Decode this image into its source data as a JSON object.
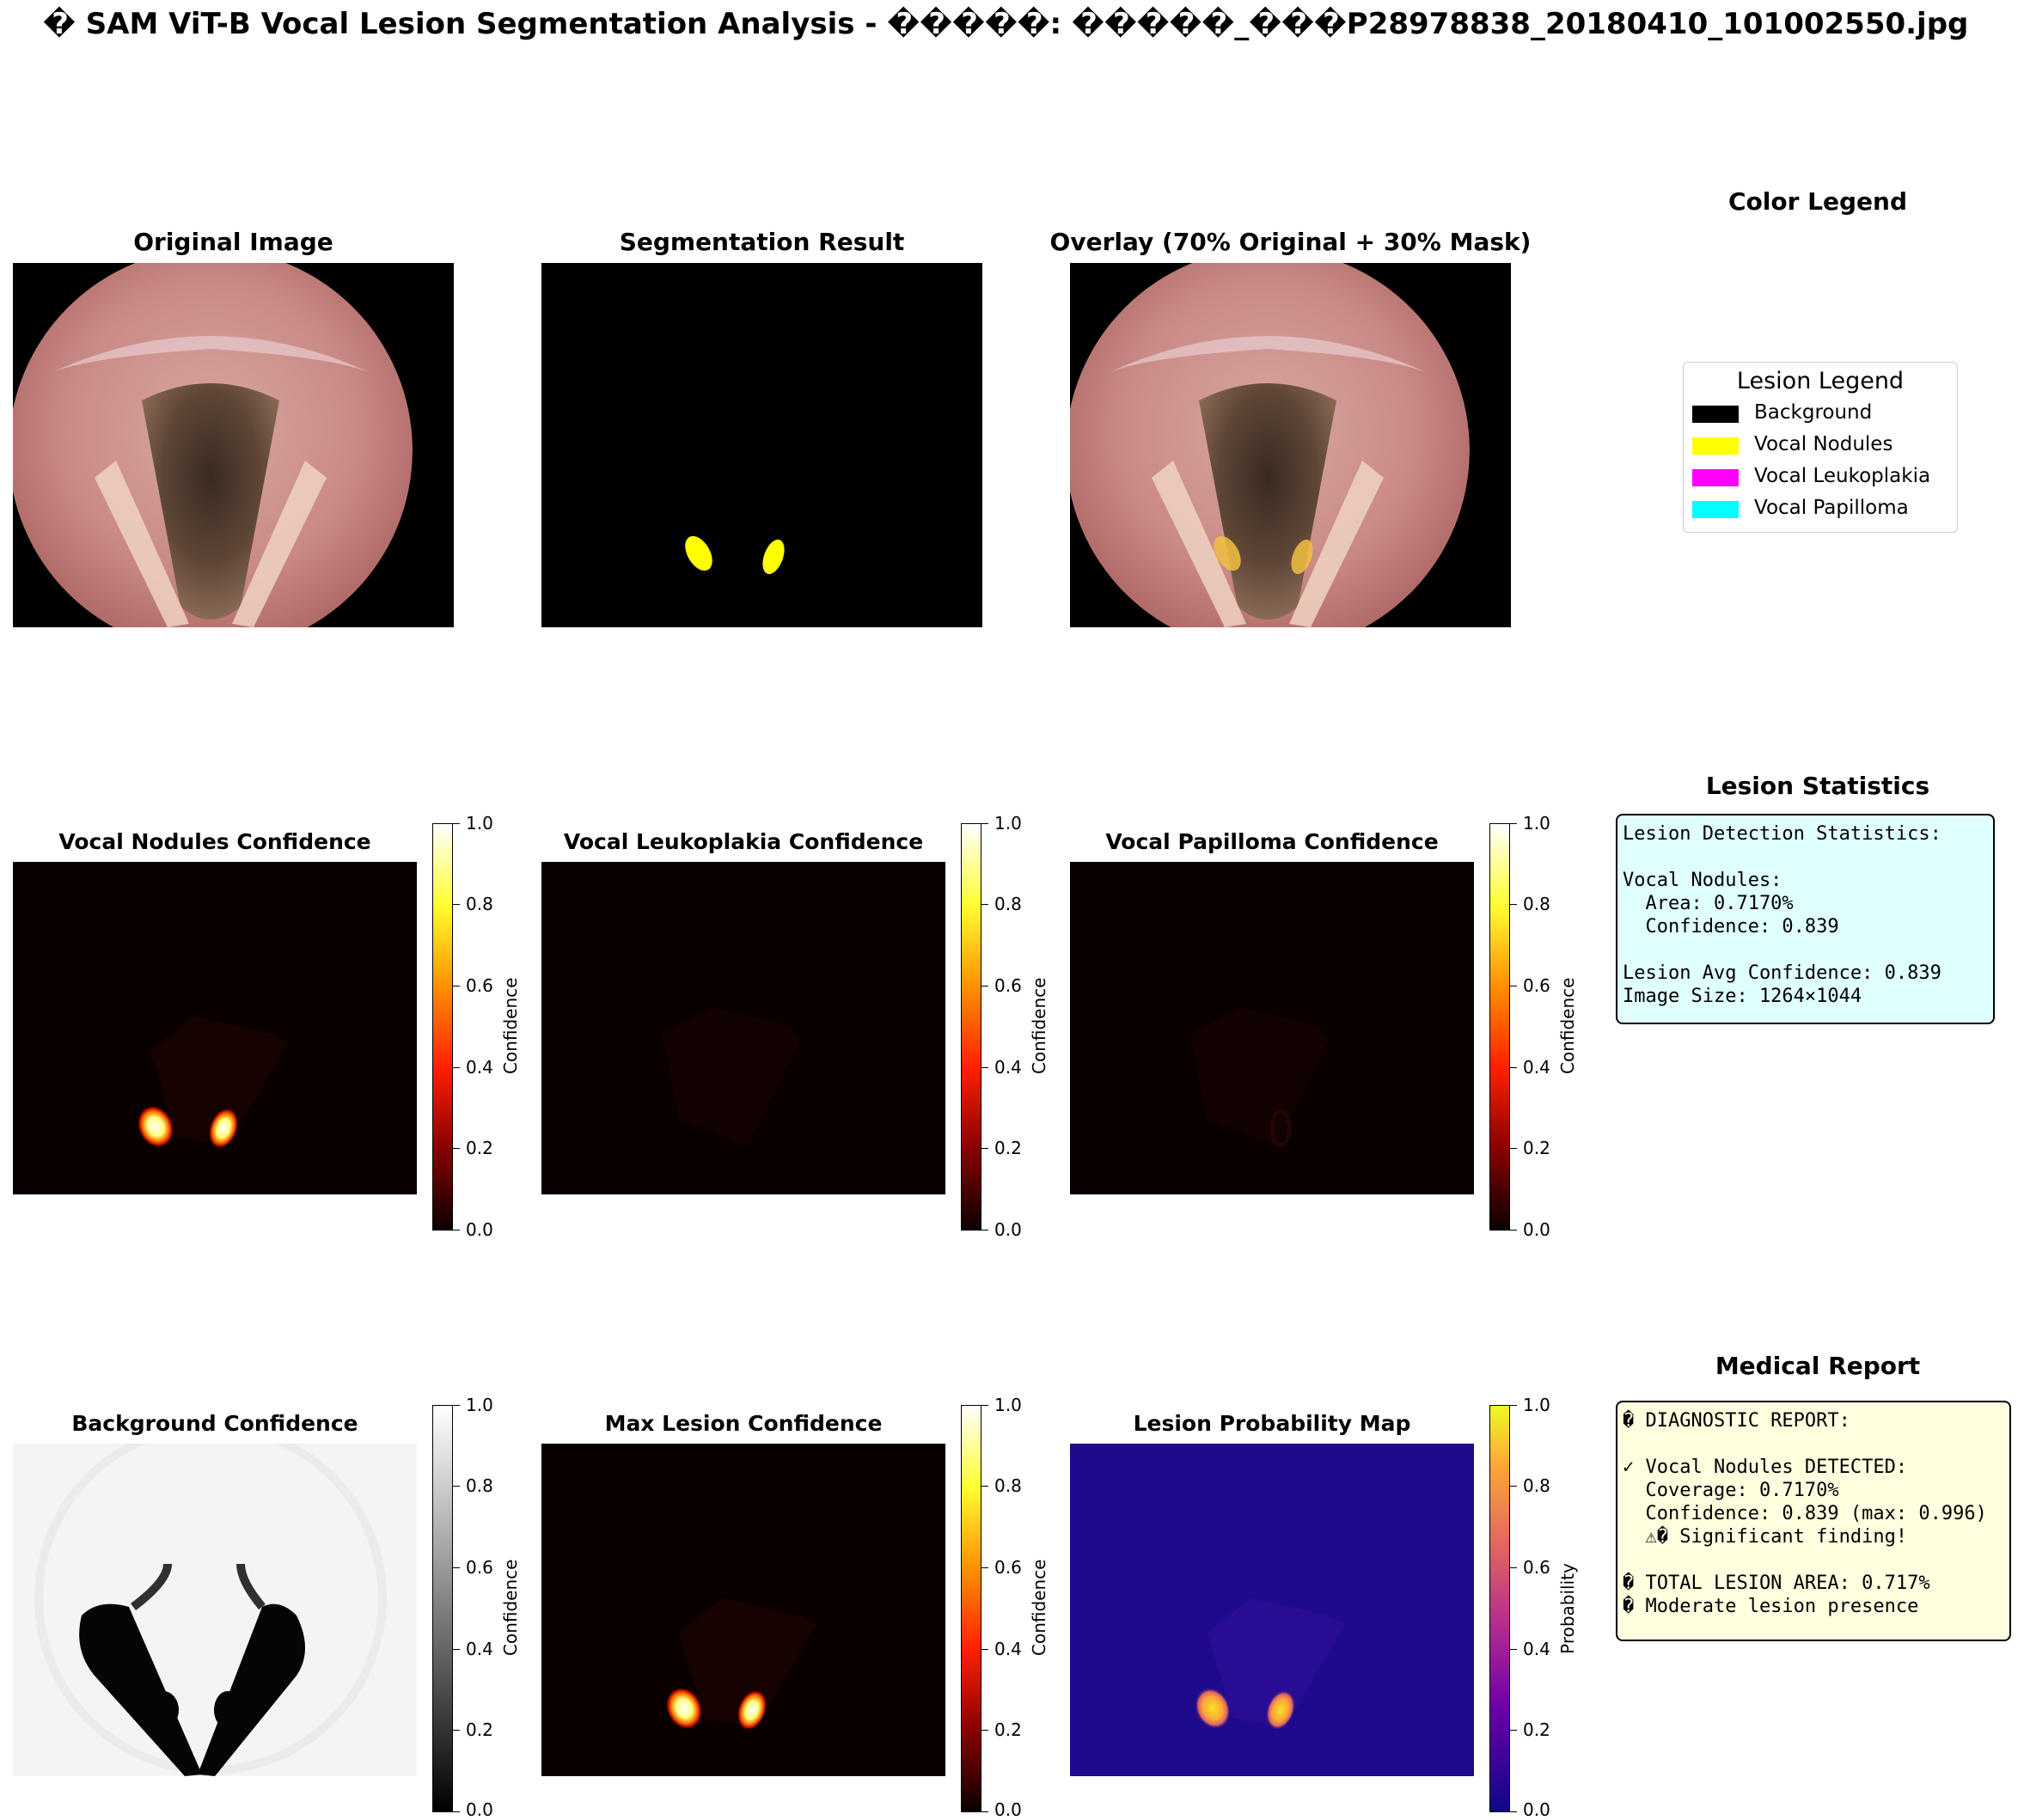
{
  "figure_title": "� SAM ViT-B Vocal Lesion Segmentation Analysis - �����: �����_���P28978838_20180410_101002550.jpg",
  "panels": {
    "original": {
      "title": "Original Image"
    },
    "segmentation": {
      "title": "Segmentation Result"
    },
    "overlay": {
      "title": "Overlay (70% Original + 30% Mask)"
    },
    "nodules_conf": {
      "title": "Vocal Nodules Confidence"
    },
    "leukoplakia_conf": {
      "title": "Vocal Leukoplakia Confidence"
    },
    "papilloma_conf": {
      "title": "Vocal Papilloma Confidence"
    },
    "background_conf": {
      "title": "Background Confidence"
    },
    "max_lesion_conf": {
      "title": "Max Lesion Confidence"
    },
    "prob_map": {
      "title": "Lesion Probability Map"
    }
  },
  "colorbar": {
    "ticks": [
      "0.0",
      "0.2",
      "0.4",
      "0.6",
      "0.8",
      "1.0"
    ],
    "label_confidence": "Confidence",
    "label_probability": "Probability"
  },
  "legend_panel": {
    "title": "Color Legend",
    "legend_title": "Lesion Legend",
    "items": [
      {
        "label": "Background",
        "color": "#000000"
      },
      {
        "label": "Vocal Nodules",
        "color": "#ffff00"
      },
      {
        "label": "Vocal Leukoplakia",
        "color": "#ff00ff"
      },
      {
        "label": "Vocal Papilloma",
        "color": "#00ffff"
      }
    ]
  },
  "stats_panel": {
    "title": "Lesion Statistics",
    "lines": [
      "Lesion Detection Statistics:",
      "",
      "Vocal Nodules:",
      "  Area: 0.7170%",
      "  Confidence: 0.839",
      "",
      "Lesion Avg Confidence: 0.839",
      "Image Size: 1264×1044"
    ]
  },
  "report_panel": {
    "title": "Medical Report",
    "lines": [
      "� DIAGNOSTIC REPORT:",
      "",
      "✓ Vocal Nodules DETECTED:",
      "  Coverage: 0.7170%",
      "  Confidence: 0.839 (max: 0.996)",
      "  ⚠� Significant finding!",
      "",
      "� TOTAL LESION AREA: 0.717%",
      "� Moderate lesion presence"
    ]
  },
  "colors": {
    "stats_box_bg": "#e0ffff",
    "report_box_bg": "#ffffe0",
    "nodule_yellow": "#ffff00",
    "hot_bg": "#0b0000",
    "plasma_bg": "#1f0a8c"
  }
}
